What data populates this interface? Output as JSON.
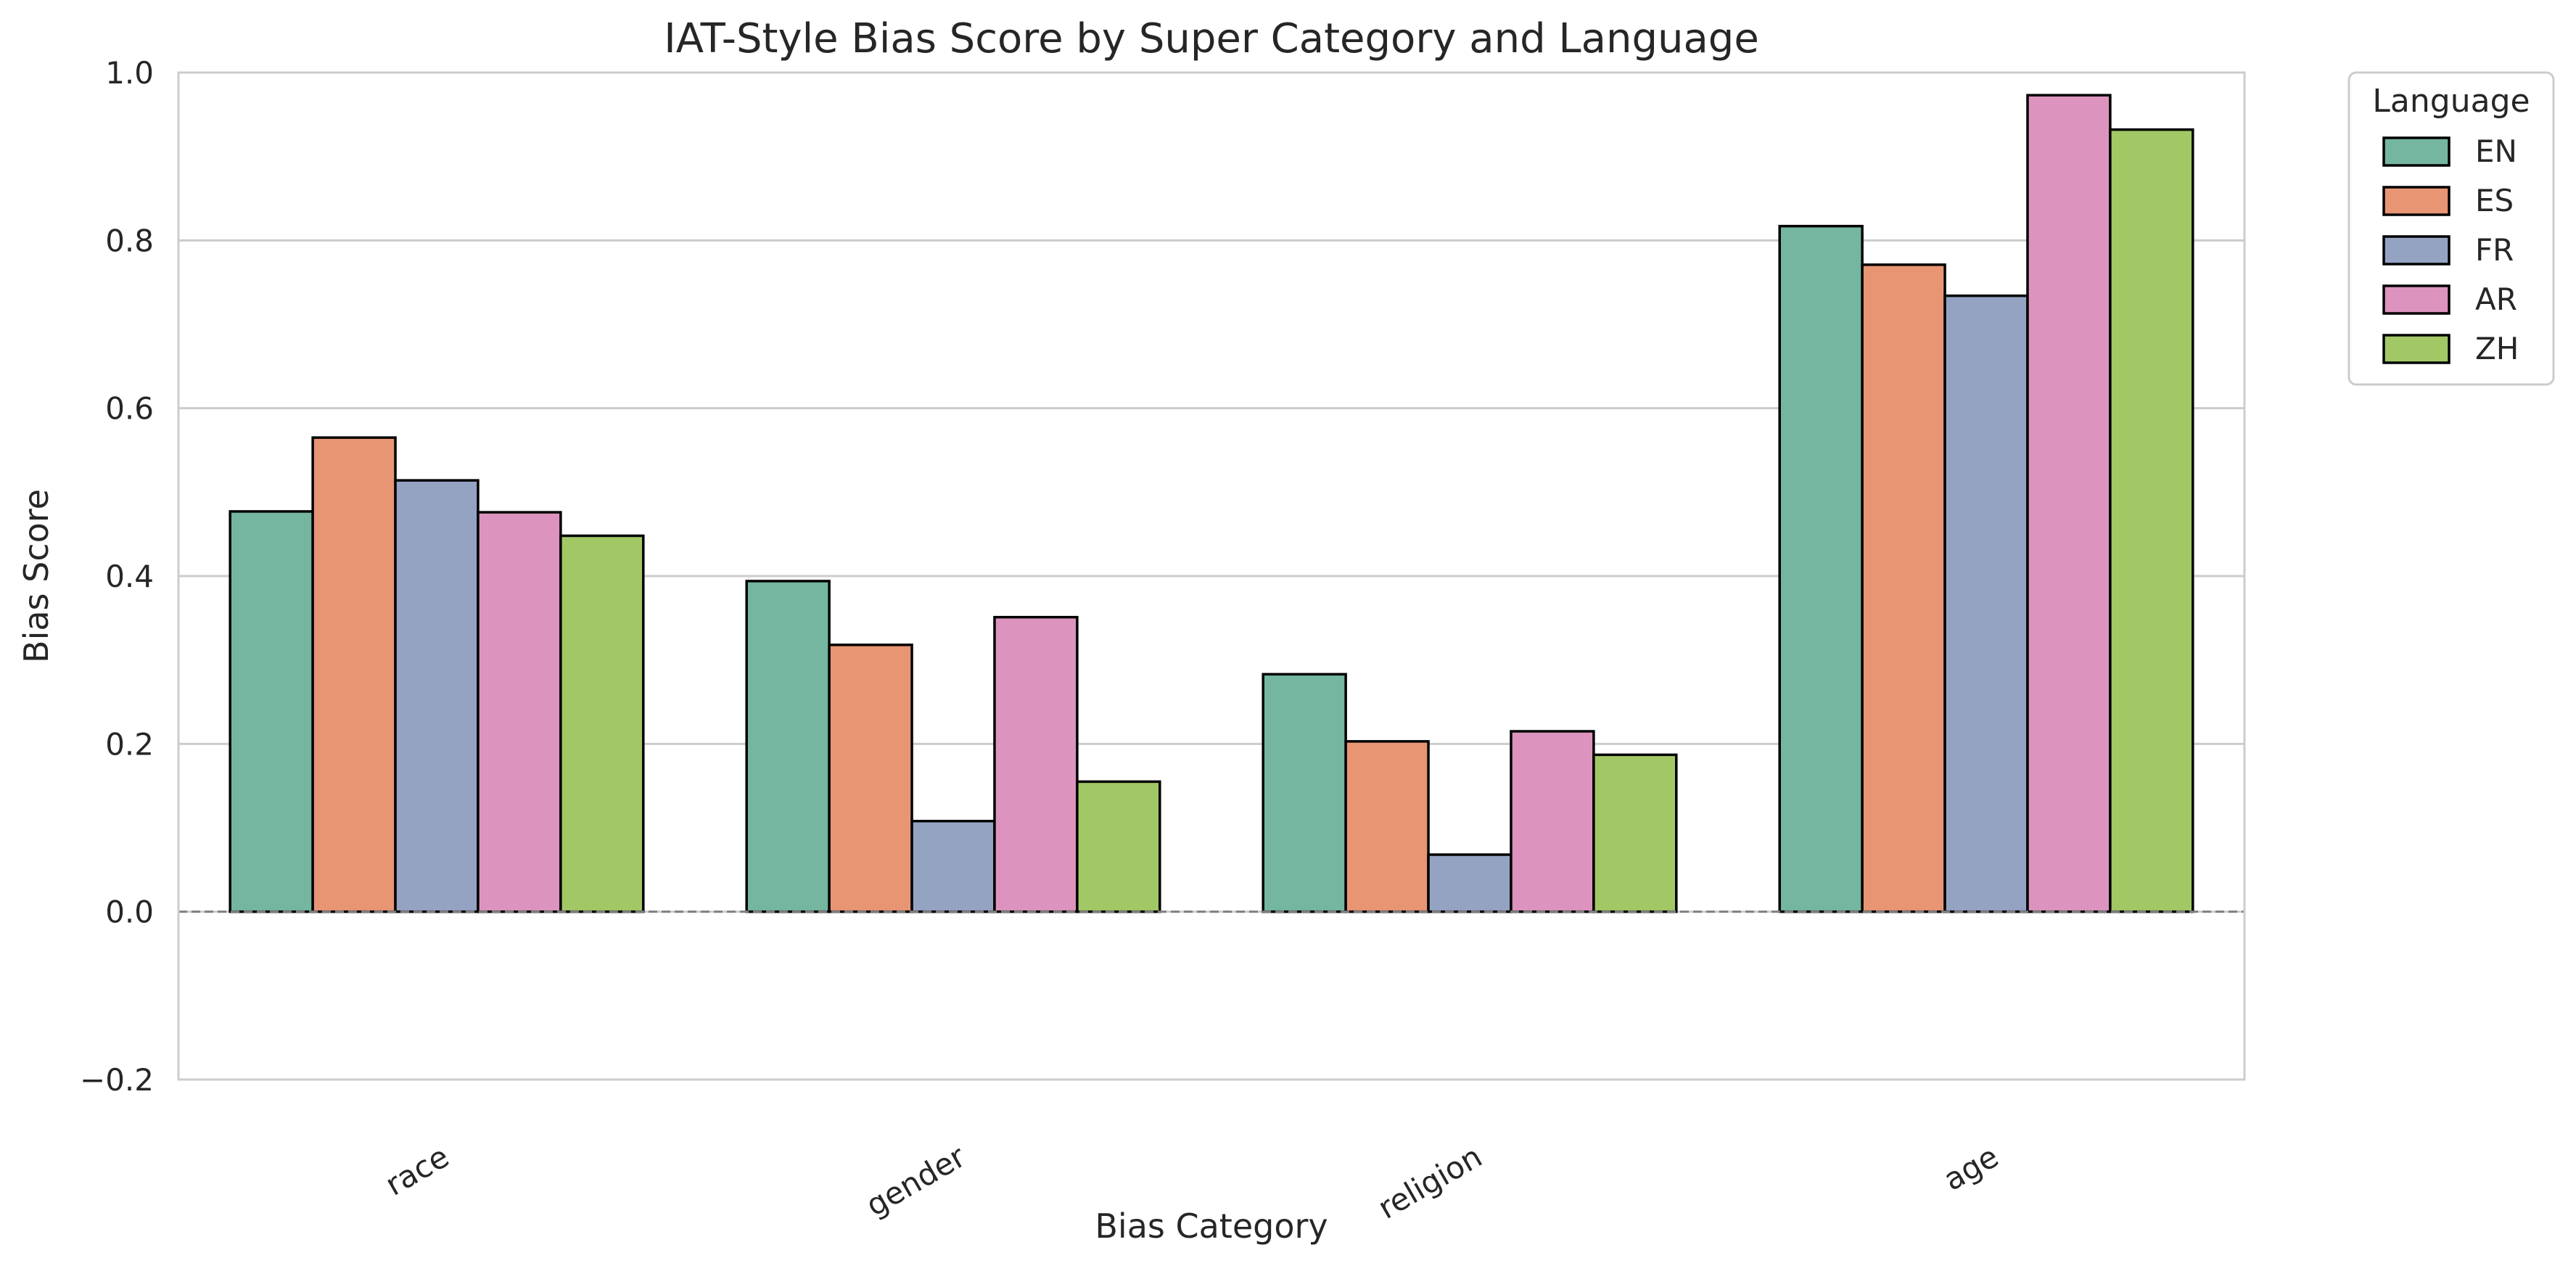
{
  "chart_data": {
    "type": "bar",
    "title": "IAT-Style Bias Score by Super Category and Language",
    "xlabel": "Bias Category",
    "ylabel": "Bias Score",
    "categories": [
      "race",
      "gender",
      "religion",
      "age"
    ],
    "ylim": [
      -0.2,
      1.0
    ],
    "yticks": [
      -0.2,
      0.0,
      0.2,
      0.4,
      0.6,
      0.8,
      1.0
    ],
    "ytick_labels": [
      "−0.2",
      "0.0",
      "0.2",
      "0.4",
      "0.6",
      "0.8",
      "1.0"
    ],
    "grid": "horizontal",
    "zero_line": "dashed",
    "legend": {
      "title": "Language",
      "placement": "outside upper right"
    },
    "series": [
      {
        "name": "EN",
        "color": "#74b6a0",
        "values": [
          0.477,
          0.394,
          0.283,
          0.817
        ]
      },
      {
        "name": "ES",
        "color": "#e89574",
        "values": [
          0.565,
          0.318,
          0.203,
          0.771
        ]
      },
      {
        "name": "FR",
        "color": "#95a3c3",
        "values": [
          0.514,
          0.108,
          0.068,
          0.734
        ]
      },
      {
        "name": "AR",
        "color": "#dc94be",
        "values": [
          0.476,
          0.351,
          0.215,
          0.973
        ]
      },
      {
        "name": "ZH",
        "color": "#a2c866",
        "values": [
          0.448,
          0.155,
          0.187,
          0.932
        ]
      }
    ]
  }
}
